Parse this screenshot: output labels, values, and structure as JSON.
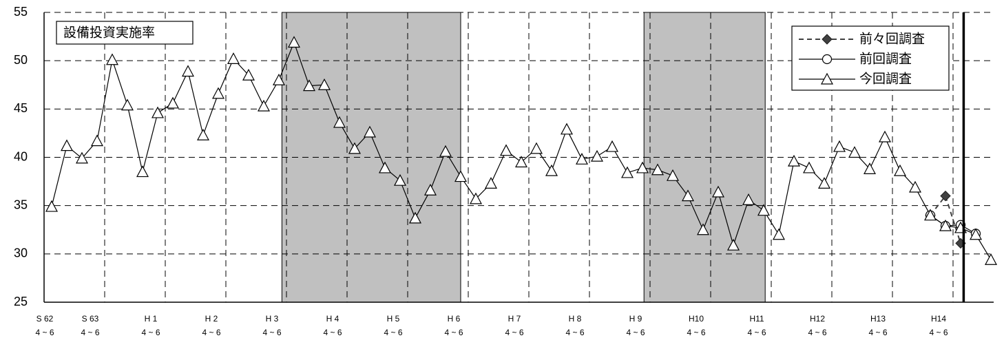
{
  "chart_data": {
    "type": "line",
    "title": "設備投資実施率",
    "categories": [
      "S 62",
      null,
      null,
      "S 63",
      null,
      null,
      null,
      "H 1",
      null,
      null,
      null,
      "H 2",
      null,
      null,
      null,
      "H 3",
      null,
      null,
      null,
      "H 4",
      null,
      null,
      null,
      "H 5",
      null,
      null,
      null,
      "H 6",
      null,
      null,
      null,
      "H 7",
      null,
      null,
      null,
      "H 8",
      null,
      null,
      null,
      "H 9",
      null,
      null,
      null,
      "H10",
      null,
      null,
      null,
      "H11",
      null,
      null,
      null,
      "H12",
      null,
      null,
      null,
      "H13",
      null,
      null,
      null,
      "H14",
      null,
      null,
      null
    ],
    "category_sublabels": [
      "4 ~ 6",
      null,
      null,
      "4 ~ 6",
      null,
      null,
      null,
      "4 ~ 6",
      null,
      null,
      null,
      "4 ~ 6",
      null,
      null,
      null,
      "4 ~ 6",
      null,
      null,
      null,
      "4 ~ 6",
      null,
      null,
      null,
      "4 ~ 6",
      null,
      null,
      null,
      "4 ~ 6",
      null,
      null,
      null,
      "4 ~ 6",
      null,
      null,
      null,
      "4 ~ 6",
      null,
      null,
      null,
      "4 ~ 6",
      null,
      null,
      null,
      "4 ~ 6",
      null,
      null,
      null,
      "4 ~ 6",
      null,
      null,
      null,
      "4 ~ 6",
      null,
      null,
      null,
      "4 ~ 6",
      null,
      null,
      null,
      "4 ~ 6",
      null,
      null,
      null
    ],
    "series": [
      {
        "name": "前々回調査",
        "color": "#404040",
        "marker": "diamond",
        "dashed": true,
        "values": [
          null,
          null,
          null,
          null,
          null,
          null,
          null,
          null,
          null,
          null,
          null,
          null,
          null,
          null,
          null,
          null,
          null,
          null,
          null,
          null,
          null,
          null,
          null,
          null,
          null,
          null,
          null,
          null,
          null,
          null,
          null,
          null,
          null,
          null,
          null,
          null,
          null,
          null,
          null,
          null,
          null,
          null,
          null,
          null,
          null,
          null,
          null,
          null,
          null,
          null,
          null,
          null,
          null,
          null,
          null,
          null,
          null,
          null,
          34.0,
          36.0,
          31.1,
          null,
          null
        ]
      },
      {
        "name": "前回調査",
        "color": "#000000",
        "marker": "circle",
        "dashed": false,
        "values": [
          null,
          null,
          null,
          null,
          null,
          null,
          null,
          null,
          null,
          null,
          null,
          null,
          null,
          null,
          null,
          null,
          null,
          null,
          null,
          null,
          null,
          null,
          null,
          null,
          null,
          null,
          null,
          null,
          null,
          null,
          null,
          null,
          null,
          null,
          null,
          null,
          null,
          null,
          null,
          null,
          null,
          null,
          null,
          null,
          null,
          null,
          null,
          null,
          null,
          null,
          null,
          null,
          null,
          null,
          null,
          null,
          null,
          null,
          34.0,
          32.9,
          33.0,
          32.1,
          null
        ]
      },
      {
        "name": "今回調査",
        "color": "#000000",
        "marker": "triangle",
        "dashed": false,
        "values": [
          34.9,
          41.2,
          39.9,
          41.7,
          50.1,
          45.4,
          38.5,
          44.6,
          45.6,
          48.9,
          42.3,
          46.6,
          50.2,
          48.5,
          45.3,
          48.0,
          51.9,
          47.4,
          47.5,
          43.6,
          40.9,
          42.6,
          38.9,
          37.6,
          33.7,
          36.6,
          40.6,
          38.0,
          35.7,
          37.3,
          40.7,
          39.5,
          40.9,
          38.6,
          42.9,
          39.8,
          40.1,
          41.1,
          38.4,
          38.9,
          38.7,
          38.1,
          36.0,
          32.5,
          36.4,
          30.9,
          35.6,
          34.5,
          32.0,
          39.6,
          38.9,
          37.3,
          41.1,
          40.5,
          38.8,
          42.1,
          38.6,
          36.9,
          34.0,
          32.9,
          32.7,
          32.0,
          29.4
        ]
      }
    ],
    "shaded": [
      {
        "from": 15.2,
        "to": 27
      },
      {
        "from": 39.1,
        "to": 47.1
      }
    ],
    "marker_line": 60.2,
    "ylim": [
      25,
      55
    ],
    "yticks": [
      25,
      30,
      35,
      40,
      45,
      50,
      55
    ],
    "grid": true
  }
}
